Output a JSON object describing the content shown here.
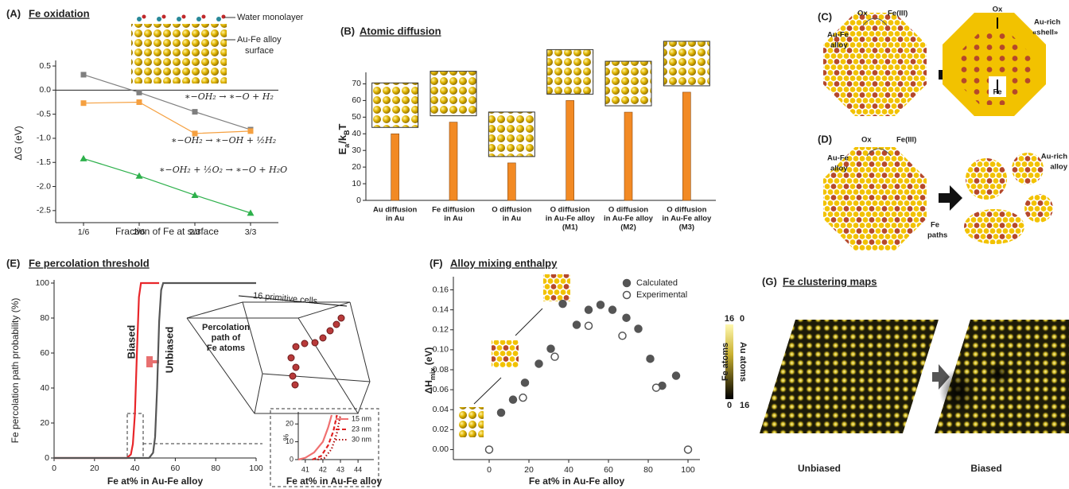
{
  "chart_data": [
    {
      "type": "line",
      "panel": "(A)",
      "title": "Fe oxidation",
      "ylabel": "ΔG (eV)",
      "xlabel": "Fraction of Fe at surface",
      "annotations": [
        "Water monolayer",
        "Au-Fe alloy",
        "surface"
      ],
      "categories": [
        "1/6",
        "2/6",
        "2/3",
        "3/3"
      ],
      "series": [
        {
          "name": "∗−OH₂ → ∗−O + H₂",
          "color": "#7f7f7f",
          "marker": "square",
          "values": [
            0.32,
            -0.05,
            -0.45,
            -0.82
          ]
        },
        {
          "name": "∗−OH₂ → ∗−OH + ½H₂",
          "color": "#f5a040",
          "marker": "square",
          "values": [
            -0.27,
            -0.25,
            -0.9,
            -0.85
          ]
        },
        {
          "name": "∗−OH₂ + ½O₂ → ∗−O + H₂O",
          "color": "#2db04b",
          "marker": "triangle",
          "values": [
            -1.42,
            -1.78,
            -2.18,
            -2.55
          ]
        }
      ],
      "ylim": [
        -2.75,
        0.55
      ],
      "yticks": [
        0.5,
        {
          "value": 0,
          "label": "0.0"
        },
        -0.5,
        {
          "value": -1,
          "label": "-1.0"
        },
        -1.5,
        {
          "value": -2,
          "label": "-2.0"
        },
        -2.5
      ],
      "zero_line": true
    },
    {
      "type": "bar",
      "panel": "(B)",
      "title": "Atomic diffusion",
      "ylabel": [
        "E",
        "a",
        "/k",
        "B",
        "T"
      ],
      "categories": [
        [
          "Au diffusion",
          "in Au"
        ],
        [
          "Fe diffusion",
          "in Au"
        ],
        [
          "O diffusion",
          "in Au"
        ],
        [
          "O diffusion",
          "in Au-Fe alloy",
          "(M1)"
        ],
        [
          "O diffusion",
          "in Au-Fe alloy",
          "(M2)"
        ],
        [
          "O diffusion",
          "in Au-Fe alloy",
          "(M3)"
        ]
      ],
      "values": [
        40,
        47,
        22.5,
        60,
        53,
        65
      ],
      "color": "#f28a24",
      "ylim": [
        0,
        75
      ],
      "yticks": [
        0,
        10,
        20,
        30,
        40,
        50,
        60,
        70
      ]
    },
    {
      "type": "line",
      "panel": "(E)",
      "title": "Fe percolation threshold",
      "ylabel": "Fe percolation path probability (%)",
      "xlabel": "Fe at% in Au-Fe alloy",
      "annotations": [
        "16 primitive cells",
        "Percolation",
        "path of",
        "Fe atoms"
      ],
      "series": [
        {
          "name": "Biased",
          "color": "#e8262a",
          "x": [
            0,
            36,
            38,
            39,
            40,
            41,
            42,
            43,
            52
          ],
          "values": [
            0,
            0,
            2,
            8,
            25,
            60,
            92,
            100,
            100
          ]
        },
        {
          "name": "Unbiased",
          "color": "#555555",
          "x": [
            0,
            47,
            49,
            50,
            51,
            52,
            53,
            54,
            100
          ],
          "values": [
            0,
            0,
            3,
            12,
            40,
            78,
            96,
            100,
            100
          ]
        }
      ],
      "xlim": [
        0,
        100
      ],
      "xticks": [
        0,
        20,
        40,
        60,
        80,
        100
      ],
      "ylim": [
        0,
        100
      ],
      "yticks": [
        0,
        20,
        40,
        60,
        80,
        100
      ]
    },
    {
      "type": "line",
      "ylabel": "%",
      "xlabel": "Fe at% in Au-Fe alloy",
      "legend": "upper right",
      "series": [
        {
          "name": "15 nm",
          "color": "#f07070",
          "dash": "solid",
          "x": [
            40.6,
            41,
            41.5,
            42,
            42.3,
            42.5
          ],
          "values": [
            0,
            1,
            4,
            10,
            18,
            25
          ]
        },
        {
          "name": "23 nm",
          "color": "#e02020",
          "dash": "dashed",
          "x": [
            41.4,
            41.9,
            42.3,
            42.6,
            42.8
          ],
          "values": [
            0,
            2,
            8,
            16,
            25
          ]
        },
        {
          "name": "30 nm",
          "color": "#b01010",
          "dash": "dotted",
          "x": [
            41.7,
            42.1,
            42.5,
            42.8,
            43
          ],
          "values": [
            0,
            1,
            6,
            15,
            25
          ]
        }
      ],
      "xlim": [
        40.6,
        44.9
      ],
      "xticks": [
        41,
        42,
        43,
        44
      ],
      "ylim": [
        0,
        25
      ],
      "yticks": [
        0,
        10,
        20
      ]
    },
    {
      "type": "scatter",
      "panel": "(F)",
      "title": "Alloy mixing enthalpy",
      "ylabel": [
        "ΔH",
        "mix",
        " (eV)"
      ],
      "xlabel": "Fe at% in Au-Fe alloy",
      "legend": "upper right",
      "series": [
        {
          "name": "Calculated",
          "color": "#555555",
          "marker": "filled",
          "x": [
            6,
            12,
            18,
            25,
            31,
            37,
            44,
            50,
            56,
            62,
            69,
            75,
            81,
            87,
            94
          ],
          "values": [
            0.037,
            0.05,
            0.067,
            0.086,
            0.101,
            0.146,
            0.125,
            0.14,
            0.145,
            0.14,
            0.132,
            0.121,
            0.091,
            0.064,
            0.074
          ]
        },
        {
          "name": "Experimental",
          "color": "#555555",
          "marker": "open",
          "x": [
            0,
            17,
            33,
            50,
            67,
            84,
            100
          ],
          "values": [
            0,
            0.052,
            0.093,
            0.124,
            0.114,
            0.062,
            0
          ]
        }
      ],
      "xlim": [
        -18,
        106
      ],
      "xticks": [
        0,
        20,
        40,
        60,
        80,
        100
      ],
      "ylim": [
        -0.01,
        0.17
      ],
      "yticks": [
        {
          "value": 0,
          "label": "0.00"
        },
        {
          "value": 0.02,
          "label": "0.02"
        },
        {
          "value": 0.04,
          "label": "0.04"
        },
        {
          "value": 0.06,
          "label": "0.06"
        },
        {
          "value": 0.08,
          "label": "0.08"
        },
        {
          "value": 0.1,
          "label": "0.10"
        },
        {
          "value": 0.12,
          "label": "0.12"
        },
        {
          "value": 0.14,
          "label": "0.14"
        },
        {
          "value": 0.16,
          "label": "0.16"
        }
      ]
    }
  ],
  "panel_c": {
    "label": "(C)",
    "ox_left": "Ox",
    "fe3": "Fe(III)",
    "alloy": [
      "Au-Fe",
      "alloy"
    ],
    "ox_right": "Ox",
    "shell": [
      "Au-rich",
      "«shell»"
    ],
    "fe": "Fe"
  },
  "panel_d": {
    "label": "(D)",
    "ox": "Ox",
    "fe3": "Fe(III)",
    "alloy": [
      "Au-Fe",
      "alloy"
    ],
    "rich": [
      "Au-rich",
      "alloy"
    ],
    "paths": [
      "Fe",
      "paths"
    ]
  },
  "panel_g": {
    "label": "(G)",
    "title": "Fe clustering maps",
    "colorbar": {
      "fe_max": "16",
      "au_min": "0",
      "fe_label": "Fe atoms",
      "au_label": "Au atoms",
      "fe_min": "0",
      "au_max": "16"
    },
    "maps": [
      "Unbiased",
      "Biased"
    ]
  }
}
